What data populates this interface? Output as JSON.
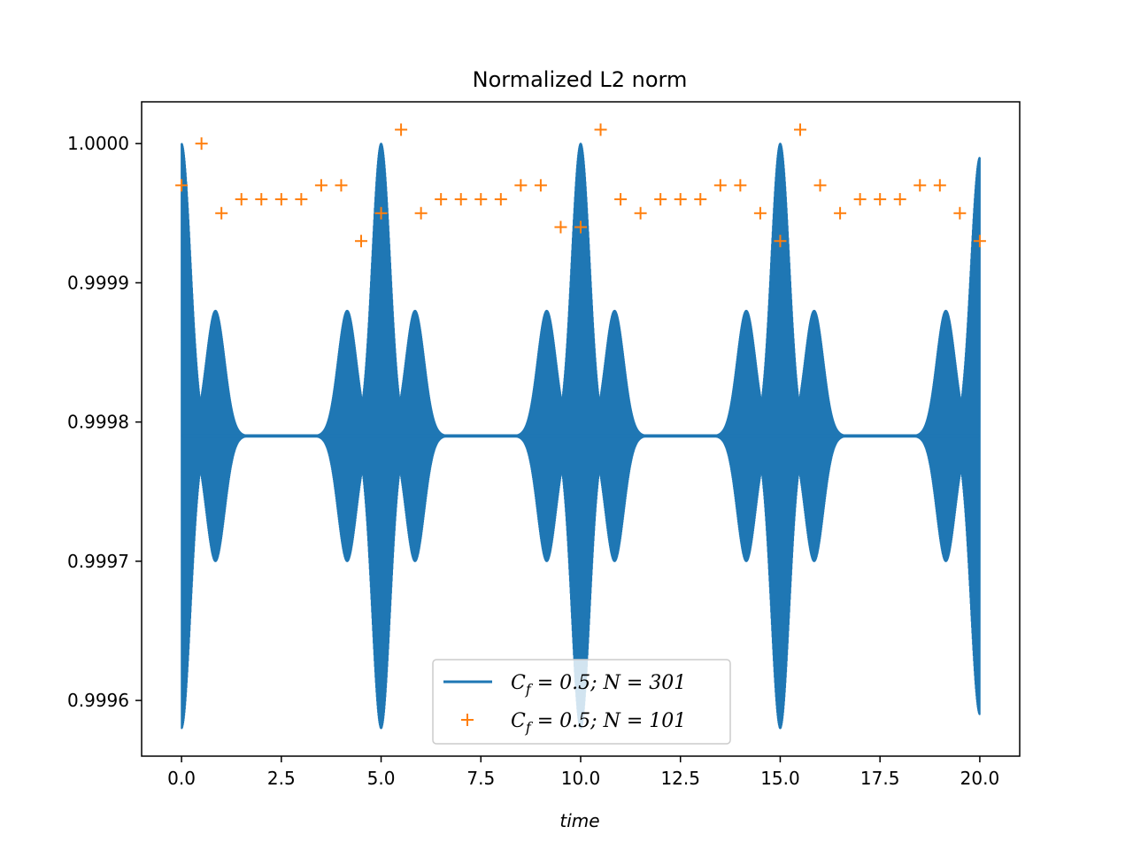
{
  "chart_data": {
    "type": "line",
    "title": "Normalized L2 norm",
    "xlabel": "time",
    "ylabel": "",
    "xlim": [
      -1.0,
      21.0
    ],
    "ylim": [
      0.99956,
      1.00003
    ],
    "xticks": [
      0.0,
      2.5,
      5.0,
      7.5,
      10.0,
      12.5,
      15.0,
      17.5,
      20.0
    ],
    "xtick_labels": [
      "0.0",
      "2.5",
      "5.0",
      "7.5",
      "10.0",
      "12.5",
      "15.0",
      "17.5",
      "20.0"
    ],
    "yticks": [
      0.9996,
      0.9997,
      0.9998,
      0.9999,
      1.0
    ],
    "ytick_labels": [
      "0.9996",
      "0.9997",
      "0.9998",
      "0.9999",
      "1.0000"
    ],
    "grid": false,
    "legend_position": "lower-center",
    "series": [
      {
        "name": "C_f = 0.5;  N = 301",
        "legend_label": "Cf = 0.5;  N = 301",
        "style": "line",
        "color": "#1f77b4",
        "description": "rapid oscillation around 0.99979 with beat-shaped envelopes",
        "baseline": 0.99979,
        "envelope": [
          {
            "x": 0.0,
            "min": 0.99958,
            "max": 1.0
          },
          {
            "x": 0.85,
            "min": 0.9997,
            "max": 0.99988
          },
          {
            "x": 4.15,
            "min": 0.9997,
            "max": 0.99988
          },
          {
            "x": 5.0,
            "min": 0.99958,
            "max": 1.0
          },
          {
            "x": 5.85,
            "min": 0.9997,
            "max": 0.99988
          },
          {
            "x": 9.15,
            "min": 0.9997,
            "max": 0.99988
          },
          {
            "x": 10.0,
            "min": 0.99958,
            "max": 1.0
          },
          {
            "x": 10.85,
            "min": 0.9997,
            "max": 0.99988
          },
          {
            "x": 14.15,
            "min": 0.9997,
            "max": 0.99988
          },
          {
            "x": 15.0,
            "min": 0.99958,
            "max": 1.0
          },
          {
            "x": 15.85,
            "min": 0.9997,
            "max": 0.99988
          },
          {
            "x": 19.15,
            "min": 0.9997,
            "max": 0.99988
          },
          {
            "x": 20.0,
            "min": 0.99959,
            "max": 0.99999
          }
        ]
      },
      {
        "name": "C_f = 0.5;  N = 101",
        "legend_label": "Cf = 0.5;  N = 101",
        "style": "marker-plus",
        "color": "#ff7f0e",
        "x": [
          0.0,
          0.5,
          1.0,
          1.5,
          2.0,
          2.5,
          3.0,
          3.5,
          4.0,
          4.5,
          5.0,
          5.5,
          6.0,
          6.5,
          7.0,
          7.5,
          8.0,
          8.5,
          9.0,
          9.5,
          10.0,
          10.5,
          11.0,
          11.5,
          12.0,
          12.5,
          13.0,
          13.5,
          14.0,
          14.5,
          15.0,
          15.5,
          16.0,
          16.5,
          17.0,
          17.5,
          18.0,
          18.5,
          19.0,
          19.5,
          20.0
        ],
        "y": [
          0.99997,
          1.0,
          0.99995,
          0.99996,
          0.99996,
          0.99996,
          0.99996,
          0.99997,
          0.99997,
          0.99993,
          0.99995,
          1.00001,
          0.99995,
          0.99996,
          0.99996,
          0.99996,
          0.99996,
          0.99997,
          0.99997,
          0.99994,
          0.99994,
          1.00001,
          0.99996,
          0.99995,
          0.99996,
          0.99996,
          0.99996,
          0.99997,
          0.99997,
          0.99995,
          0.99993,
          1.00001,
          0.99997,
          0.99995,
          0.99996,
          0.99996,
          0.99996,
          0.99997,
          0.99997,
          0.99995,
          0.99993
        ]
      }
    ]
  }
}
